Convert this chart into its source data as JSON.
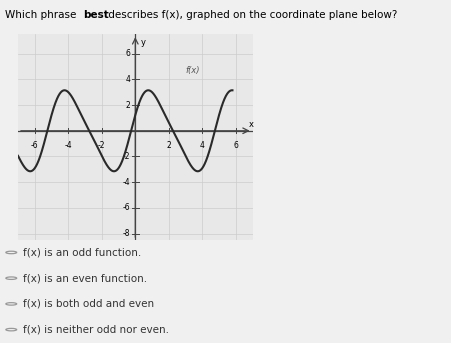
{
  "title_parts": [
    "Which phrase ",
    "best",
    " describes f(x), graphed on the coordinate plane below?"
  ],
  "graph_label": "f(x)",
  "xlim": [
    -7,
    7
  ],
  "ylim": [
    -8.5,
    7.5
  ],
  "xticks": [
    -6,
    -4,
    -2,
    2,
    4,
    6
  ],
  "yticks": [
    -8,
    -6,
    -4,
    -2,
    2,
    4,
    6
  ],
  "xlabel": "x",
  "ylabel": "y",
  "curve_color": "#2a2a2a",
  "curve_linewidth": 1.5,
  "background_color": "#f0f0f0",
  "graph_bg": "#e8e8e8",
  "answer_options": [
    "f(x) is an odd function.",
    "f(x) is an even function.",
    "f(x) is both odd and even",
    "f(x) is neither odd nor even."
  ],
  "radio_color": "#999999",
  "answer_fontsize": 7.5,
  "grid_color": "#cccccc",
  "axis_color": "#444444",
  "title_fontsize": 7.5,
  "tick_fontsize": 5.5
}
